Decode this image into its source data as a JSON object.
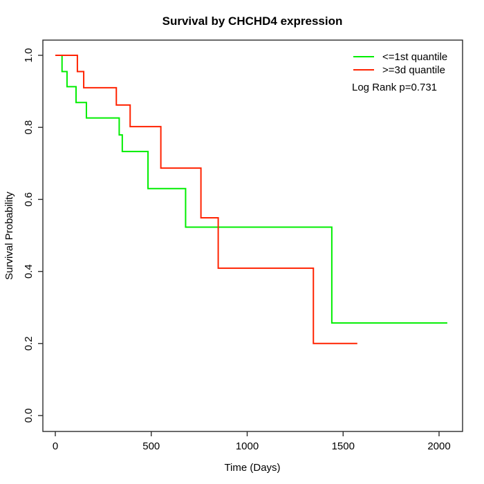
{
  "title": "Survival by CHCHD4 expression",
  "axes": {
    "x_label": "Time (Days)",
    "y_label": "Survival Probability"
  },
  "legend": {
    "entries": [
      {
        "label": "<=1st quantile",
        "color": "#00ee00"
      },
      {
        "label": ">=3d quantile",
        "color": "#ff2200"
      }
    ],
    "note": "Log Rank p=0.731"
  },
  "chart_data": {
    "type": "line",
    "subtype": "kaplan-meier-step",
    "title": "Survival by CHCHD4 expression",
    "xlabel": "Time (Days)",
    "ylabel": "Survival Probability",
    "xlim": [
      0,
      2100
    ],
    "ylim": [
      0.0,
      1.0
    ],
    "x_ticks": [
      0,
      500,
      1000,
      1500,
      2000
    ],
    "y_ticks": [
      0.0,
      0.2,
      0.4,
      0.6,
      0.8,
      1.0
    ],
    "grid": false,
    "legend_position": "top-right",
    "annotation": "Log Rank p=0.731",
    "series": [
      {
        "name": "<=1st quantile",
        "color": "#00ee00",
        "steps": [
          [
            0,
            1.0
          ],
          [
            35,
            0.955
          ],
          [
            61,
            0.913
          ],
          [
            108,
            0.869
          ],
          [
            162,
            0.826
          ],
          [
            333,
            0.779
          ],
          [
            349,
            0.733
          ],
          [
            483,
            0.63
          ],
          [
            679,
            0.523
          ],
          [
            1441,
            0.257
          ]
        ],
        "end_time": 2043
      },
      {
        "name": ">=3d quantile",
        "color": "#ff2200",
        "steps": [
          [
            0,
            1.0
          ],
          [
            115,
            0.955
          ],
          [
            148,
            0.91
          ],
          [
            318,
            0.862
          ],
          [
            390,
            0.802
          ],
          [
            550,
            0.687
          ],
          [
            759,
            0.549
          ],
          [
            849,
            0.409
          ],
          [
            1345,
            0.2
          ]
        ],
        "end_time": 1574
      }
    ]
  }
}
